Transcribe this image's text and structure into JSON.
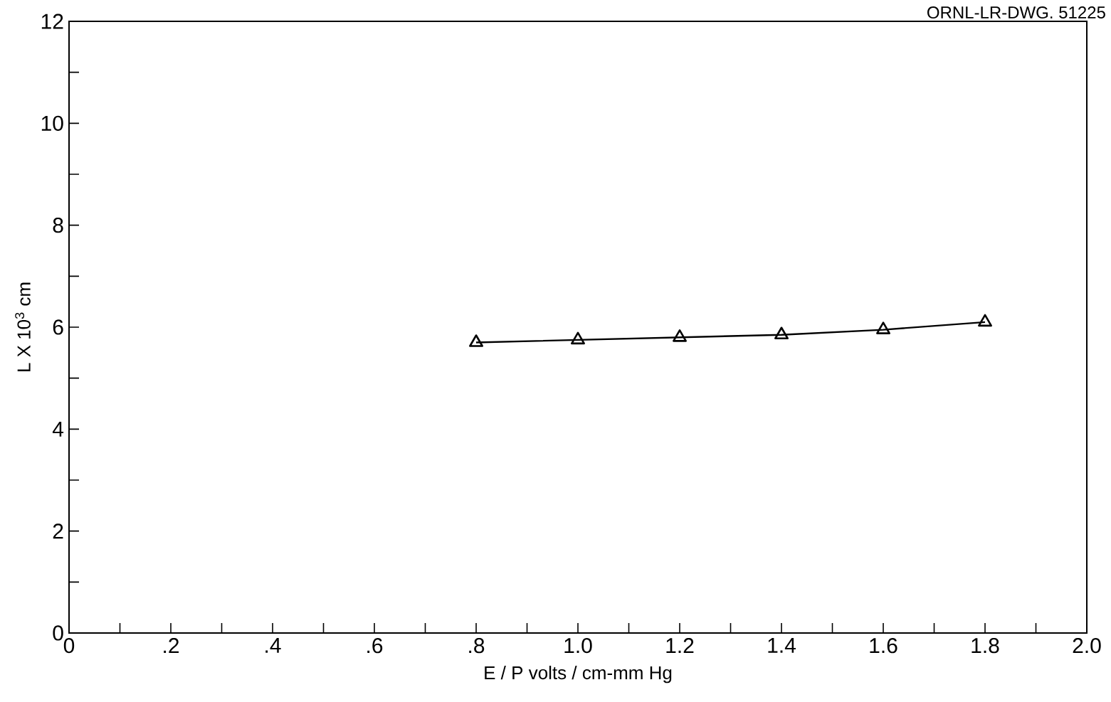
{
  "chart_data": {
    "type": "line",
    "xlabel": "E / P  volts / cm-mm  Hg",
    "ylabel": "L X 10$^{3}$ cm",
    "annotations": [
      "ORNL-LR-DWG. 51225"
    ],
    "x": [
      0.8,
      1.0,
      1.2,
      1.4,
      1.6,
      1.8
    ],
    "series": [
      {
        "color": "#000000",
        "values": [
          5.7,
          5.75,
          5.8,
          5.85,
          5.95,
          6.1
        ]
      }
    ],
    "marker": "triangle",
    "line_style": "solid",
    "xlim": [
      0,
      2.0
    ],
    "ylim": [
      0,
      12
    ],
    "xticks": [
      0,
      {
        "value": 0.1,
        "label": null
      },
      {
        "value": 0.2,
        "label": ".2"
      },
      {
        "value": 0.3,
        "label": null
      },
      {
        "value": 0.4,
        "label": ".4"
      },
      {
        "value": 0.5,
        "label": null
      },
      {
        "value": 0.6,
        "label": ".6"
      },
      {
        "value": 0.7,
        "label": null
      },
      {
        "value": 0.8,
        "label": ".8"
      },
      {
        "value": 0.9,
        "label": null
      },
      {
        "value": 1.0,
        "label": "1.0"
      },
      {
        "value": 1.1,
        "label": null
      },
      {
        "value": 1.2,
        "label": "1.2"
      },
      {
        "value": 1.3,
        "label": null
      },
      {
        "value": 1.4,
        "label": "1.4"
      },
      {
        "value": 1.5,
        "label": null
      },
      {
        "value": 1.6,
        "label": "1.6"
      },
      {
        "value": 1.7,
        "label": null
      },
      {
        "value": 1.8,
        "label": "1.8"
      },
      {
        "value": 1.9,
        "label": null
      },
      {
        "value": 2.0,
        "label": "2.0"
      }
    ],
    "yticks": [
      0,
      {
        "value": 1,
        "label": null
      },
      2,
      {
        "value": 3,
        "label": null
      },
      4,
      {
        "value": 5,
        "label": null
      },
      6,
      {
        "value": 7,
        "label": null
      },
      8,
      {
        "value": 9,
        "label": null
      },
      10,
      {
        "value": 11,
        "label": null
      },
      12
    ]
  }
}
